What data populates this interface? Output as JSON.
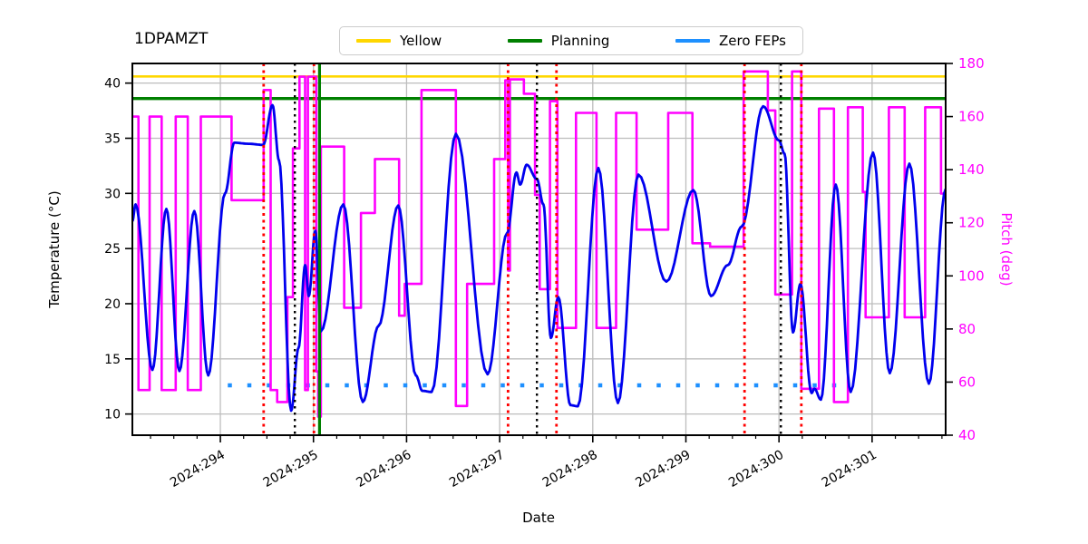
{
  "chart_data": {
    "type": "line",
    "title": "1DPAMZT",
    "xlabel": "Date",
    "ylabel_left": "Temperature (°C)",
    "ylabel_right": "Pitch (deg)",
    "xlim": [
      293.055,
      301.79
    ],
    "ylim_left": [
      8.08,
      41.78
    ],
    "ylim_right": [
      40,
      180
    ],
    "x_ticks": [
      {
        "day": 294,
        "label": "2024:294"
      },
      {
        "day": 295,
        "label": "2024:295"
      },
      {
        "day": 296,
        "label": "2024:296"
      },
      {
        "day": 297,
        "label": "2024:297"
      },
      {
        "day": 298,
        "label": "2024:298"
      },
      {
        "day": 299,
        "label": "2024:299"
      },
      {
        "day": 300,
        "label": "2024:300"
      },
      {
        "day": 301,
        "label": "2024:301"
      }
    ],
    "x_minor_step": 0.25,
    "yticks_left": [
      10,
      15,
      20,
      25,
      30,
      35,
      40
    ],
    "yticks_right": [
      40,
      60,
      80,
      100,
      120,
      140,
      160,
      180
    ],
    "grid_color": "#bdbdbd",
    "legend": [
      {
        "label": "Yellow",
        "color": "#ffd700"
      },
      {
        "label": "Planning",
        "color": "#008000"
      },
      {
        "label": "Zero FEPs",
        "color": "#1e90ff"
      }
    ],
    "limits": {
      "yellow": 40.6,
      "planning": 38.6,
      "zero_feps_value": 12.6,
      "zero_feps_span": [
        294.08,
        300.68
      ]
    },
    "vlines": {
      "red_dotted": [
        294.465,
        295.005,
        297.09,
        297.61,
        299.63,
        300.24
      ],
      "black_dotted": [
        294.8,
        297.4,
        300.02
      ],
      "green_solid": [
        295.065
      ],
      "red_color": "#ff0000",
      "black_color": "#000000",
      "green_color": "#008000"
    },
    "temperature_series": {
      "name": "1DPAMZT model temperature",
      "color": "#0000ee",
      "points": [
        [
          293.055,
          27.5
        ],
        [
          293.09,
          29.0
        ],
        [
          293.27,
          14.0
        ],
        [
          293.42,
          28.6
        ],
        [
          293.56,
          13.9
        ],
        [
          293.72,
          28.4
        ],
        [
          293.87,
          13.5
        ],
        [
          294.05,
          30.0
        ],
        [
          294.15,
          34.6
        ],
        [
          294.3,
          34.5
        ],
        [
          294.46,
          34.4
        ],
        [
          294.56,
          38.0
        ],
        [
          294.63,
          33.0
        ],
        [
          294.76,
          10.3
        ],
        [
          294.84,
          16.0
        ],
        [
          294.91,
          23.5
        ],
        [
          294.95,
          20.7
        ],
        [
          295.02,
          26.6
        ],
        [
          295.08,
          17.5
        ],
        [
          295.32,
          29.0
        ],
        [
          295.53,
          11.1
        ],
        [
          295.7,
          18.0
        ],
        [
          295.91,
          28.9
        ],
        [
          296.1,
          13.5
        ],
        [
          296.17,
          12.1
        ],
        [
          296.27,
          12.0
        ],
        [
          296.53,
          35.4
        ],
        [
          296.87,
          13.6
        ],
        [
          297.08,
          26.4
        ],
        [
          297.18,
          31.9
        ],
        [
          297.22,
          30.8
        ],
        [
          297.29,
          32.6
        ],
        [
          297.4,
          31.3
        ],
        [
          297.47,
          29.0
        ],
        [
          297.55,
          16.9
        ],
        [
          297.63,
          20.6
        ],
        [
          297.76,
          10.8
        ],
        [
          297.84,
          10.7
        ],
        [
          298.06,
          32.3
        ],
        [
          298.27,
          11.0
        ],
        [
          298.49,
          31.7
        ],
        [
          298.79,
          22.0
        ],
        [
          299.08,
          30.3
        ],
        [
          299.27,
          20.7
        ],
        [
          299.45,
          23.5
        ],
        [
          299.6,
          27.0
        ],
        [
          299.83,
          37.9
        ],
        [
          300.0,
          34.8
        ],
        [
          300.06,
          33.6
        ],
        [
          300.15,
          17.4
        ],
        [
          300.23,
          21.8
        ],
        [
          300.35,
          11.9
        ],
        [
          300.38,
          12.3
        ],
        [
          300.45,
          11.3
        ],
        [
          300.61,
          30.8
        ],
        [
          300.77,
          12.0
        ],
        [
          301.01,
          33.7
        ],
        [
          301.19,
          13.7
        ],
        [
          301.4,
          32.7
        ],
        [
          301.61,
          12.75
        ],
        [
          301.79,
          30.4
        ]
      ]
    },
    "pitch_series": {
      "name": "Pitch",
      "color": "#ff00ff",
      "steps": [
        [
          293.055,
          293.12,
          160
        ],
        [
          293.12,
          293.24,
          57
        ],
        [
          293.24,
          293.37,
          160
        ],
        [
          293.37,
          293.52,
          57
        ],
        [
          293.52,
          293.65,
          160
        ],
        [
          293.65,
          293.79,
          57
        ],
        [
          293.79,
          294.12,
          160
        ],
        [
          294.12,
          294.465,
          128.5
        ],
        [
          294.465,
          294.54,
          170
        ],
        [
          294.54,
          294.61,
          57
        ],
        [
          294.61,
          294.72,
          52.5
        ],
        [
          294.72,
          294.78,
          92
        ],
        [
          294.78,
          294.85,
          148
        ],
        [
          294.85,
          294.91,
          175
        ],
        [
          294.91,
          294.94,
          57
        ],
        [
          294.94,
          295.03,
          175
        ],
        [
          295.03,
          295.05,
          64
        ],
        [
          295.05,
          295.08,
          47
        ],
        [
          295.08,
          295.33,
          148.7
        ],
        [
          295.33,
          295.51,
          88
        ],
        [
          295.51,
          295.66,
          123.7
        ],
        [
          295.66,
          295.92,
          144
        ],
        [
          295.92,
          295.98,
          85
        ],
        [
          295.98,
          296.16,
          97
        ],
        [
          296.16,
          296.53,
          170
        ],
        [
          296.53,
          296.65,
          51
        ],
        [
          296.65,
          296.94,
          97
        ],
        [
          296.94,
          297.06,
          144
        ],
        [
          297.06,
          297.09,
          173.7
        ],
        [
          297.09,
          297.11,
          102
        ],
        [
          297.11,
          297.26,
          174
        ],
        [
          297.26,
          297.38,
          168.6
        ],
        [
          297.38,
          297.43,
          130.5
        ],
        [
          297.43,
          297.54,
          95
        ],
        [
          297.54,
          297.62,
          165.8
        ],
        [
          297.62,
          297.82,
          80.4
        ],
        [
          297.82,
          298.04,
          161.4
        ],
        [
          298.04,
          298.25,
          80.4
        ],
        [
          298.25,
          298.47,
          161.4
        ],
        [
          298.47,
          298.81,
          117.4
        ],
        [
          298.81,
          299.07,
          161.4
        ],
        [
          299.07,
          299.26,
          112.3
        ],
        [
          299.26,
          299.62,
          111
        ],
        [
          299.62,
          299.88,
          177
        ],
        [
          299.88,
          299.96,
          162.3
        ],
        [
          299.96,
          300.14,
          93
        ],
        [
          300.14,
          300.24,
          177
        ],
        [
          300.24,
          300.43,
          57.5
        ],
        [
          300.43,
          300.59,
          163
        ],
        [
          300.59,
          300.74,
          52.5
        ],
        [
          300.74,
          300.9,
          163.5
        ],
        [
          300.9,
          300.93,
          131.6
        ],
        [
          300.93,
          301.18,
          84.4
        ],
        [
          301.18,
          301.35,
          163.5
        ],
        [
          301.35,
          301.57,
          84.4
        ],
        [
          301.57,
          301.74,
          163.5
        ],
        [
          301.74,
          301.79,
          131
        ]
      ]
    }
  }
}
